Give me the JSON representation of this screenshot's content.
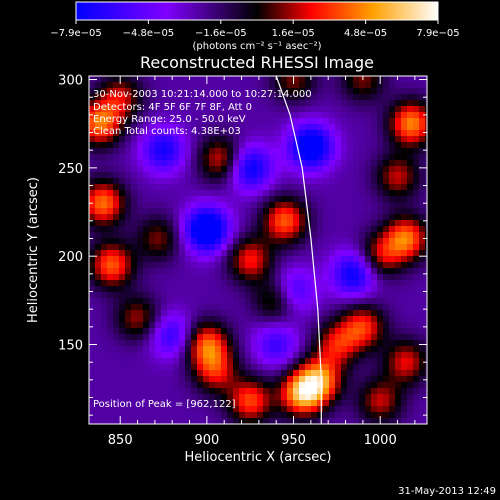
{
  "chart_data": {
    "type": "heatmap",
    "title": "Reconstructed RHESSI Image",
    "xlabel": "Heliocentric X (arcsec)",
    "ylabel": "Heliocentric Y (arcsec)",
    "xlim": [
      832,
      1027
    ],
    "ylim": [
      105,
      302
    ],
    "x_ticks": [
      "850",
      "900",
      "950",
      "1000"
    ],
    "y_ticks": [
      "150",
      "200",
      "250",
      "300"
    ],
    "x_tick_values": [
      850,
      900,
      950,
      1000
    ],
    "y_tick_values": [
      150,
      200,
      250,
      300
    ],
    "colorbar": {
      "ticks": [
        "−7.9e−05",
        "−4.8e−05",
        "−1.6e−05",
        "1.6e−05",
        "4.8e−05",
        "7.9e−05"
      ],
      "unit_label": "(photons cm⁻² s⁻¹ asec⁻²)",
      "range": [
        -7.9e-05,
        7.9e-05
      ],
      "colors": [
        "#0000ff",
        "#8000ff",
        "#000000",
        "#ff0000",
        "#ffa000",
        "#ffffff"
      ]
    },
    "annotations": {
      "time_range": "30-Nov-2003 10:21:14.000 to 10:27:14.000",
      "detectors": "Detectors: 4F 5F 6F 7F 8F, Att 0",
      "energy": "Energy Range: 25.0 - 50.0 keV",
      "method": "Clean     Total counts: 4.38E+03",
      "peak": "Position of Peak = [962,122]"
    },
    "peak": {
      "x": 962,
      "y": 122
    },
    "limb_curve": [
      [
        940,
        302
      ],
      [
        948,
        280
      ],
      [
        955,
        250
      ],
      [
        960,
        210
      ],
      [
        964,
        170
      ],
      [
        966,
        130
      ],
      [
        966,
        105
      ]
    ],
    "blobs": [
      {
        "x": 955,
        "y": 122,
        "v": 1.0
      },
      {
        "x": 965,
        "y": 130,
        "v": 0.85
      },
      {
        "x": 925,
        "y": 118,
        "v": 0.75
      },
      {
        "x": 900,
        "y": 150,
        "v": 0.8
      },
      {
        "x": 905,
        "y": 135,
        "v": 0.6
      },
      {
        "x": 845,
        "y": 195,
        "v": 0.8
      },
      {
        "x": 840,
        "y": 230,
        "v": 0.85
      },
      {
        "x": 838,
        "y": 275,
        "v": 0.85
      },
      {
        "x": 850,
        "y": 290,
        "v": 0.55
      },
      {
        "x": 1018,
        "y": 275,
        "v": 0.9
      },
      {
        "x": 1015,
        "y": 210,
        "v": 0.85
      },
      {
        "x": 1010,
        "y": 245,
        "v": 0.55
      },
      {
        "x": 1015,
        "y": 140,
        "v": 0.6
      },
      {
        "x": 1000,
        "y": 118,
        "v": 0.55
      },
      {
        "x": 990,
        "y": 160,
        "v": 0.7
      },
      {
        "x": 975,
        "y": 150,
        "v": 0.6
      },
      {
        "x": 945,
        "y": 220,
        "v": 0.8
      },
      {
        "x": 925,
        "y": 198,
        "v": 0.65
      },
      {
        "x": 908,
        "y": 255,
        "v": 0.6
      },
      {
        "x": 860,
        "y": 165,
        "v": 0.5
      },
      {
        "x": 872,
        "y": 210,
        "v": 0.45
      },
      {
        "x": 1000,
        "y": 200,
        "v": 0.55
      },
      {
        "x": 940,
        "y": 175,
        "v": 0.5
      },
      {
        "x": 950,
        "y": 300,
        "v": 0.45
      },
      {
        "x": 990,
        "y": 300,
        "v": 0.45
      },
      {
        "x": 960,
        "y": 262,
        "v": -0.9
      },
      {
        "x": 900,
        "y": 215,
        "v": -1.0
      },
      {
        "x": 925,
        "y": 250,
        "v": -0.7
      },
      {
        "x": 985,
        "y": 190,
        "v": -0.7
      },
      {
        "x": 875,
        "y": 260,
        "v": -0.6
      },
      {
        "x": 950,
        "y": 180,
        "v": -0.5
      },
      {
        "x": 880,
        "y": 155,
        "v": -0.5
      },
      {
        "x": 940,
        "y": 150,
        "v": -0.45
      }
    ]
  },
  "footer_timestamp": "31-May-2013 12:49"
}
